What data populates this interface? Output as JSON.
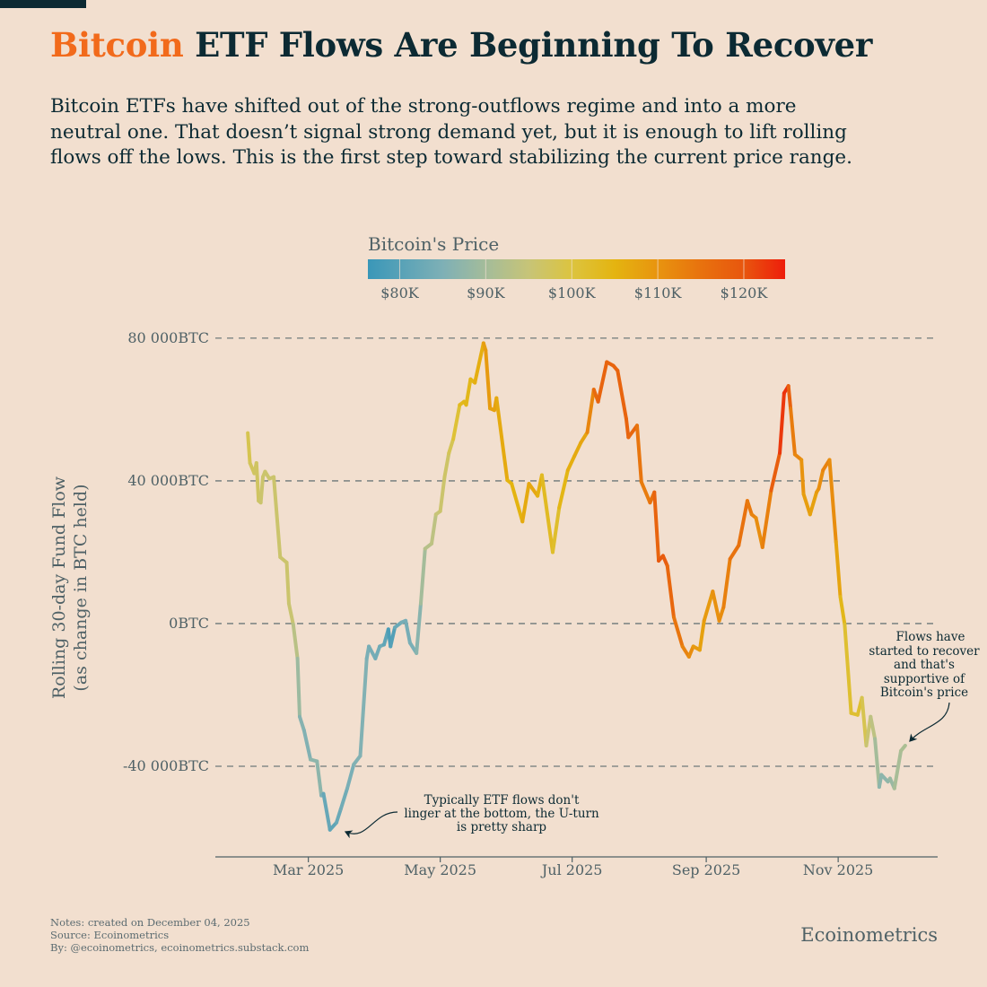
{
  "header": {
    "title_highlight": "Bitcoin",
    "title_rest": " ETF Flows Are Beginning To Recover",
    "subtitle": "Bitcoin ETFs have shifted out of the strong-outflows regime and into a more neutral one. That doesn’t signal strong demand yet, but it is enough to lift rolling flows off the lows. This is the first step toward stabilizing the current price range."
  },
  "colors": {
    "accent": "#f26a1b",
    "text": "#0c2a33",
    "background": "#f2dfcf",
    "muted": "#4f6166"
  },
  "footer": {
    "notes": "Notes: created on December 04, 2025",
    "source": "Source: Ecoinometrics",
    "by": "By: @ecoinometrics, ecoinometrics.substack.com",
    "brand": "Ecoinometrics"
  },
  "chart_data": {
    "type": "line",
    "title": "Bitcoin ETF Flows Are Beginning To Recover",
    "xlabel": "",
    "ylabel": "Rolling 30-day Fund Flow",
    "ylabel_sub": "(as change in BTC held)",
    "xlim": [
      "2025-01-17",
      "2025-12-17"
    ],
    "ylim": [
      -65400,
      85500
    ],
    "grid": "horizontal dashed",
    "yticks": [
      {
        "value": 80000,
        "label": "80 000BTC"
      },
      {
        "value": 40000,
        "label": "40 000BTC"
      },
      {
        "value": 0,
        "label": "0BTC"
      },
      {
        "value": -40000,
        "label": "-40 000BTC"
      }
    ],
    "xticks": [
      {
        "value": "2025-03-01",
        "label": "Mar 2025"
      },
      {
        "value": "2025-05-01",
        "label": "May 2025"
      },
      {
        "value": "2025-07-01",
        "label": "Jul 2025"
      },
      {
        "value": "2025-09-01",
        "label": "Sep 2025"
      },
      {
        "value": "2025-11-01",
        "label": "Nov 2025"
      }
    ],
    "colorbar": {
      "title": "Bitcoin's Price",
      "range": [
        76300,
        124800
      ],
      "ticks": [
        {
          "value": 80000,
          "label": "$80K"
        },
        {
          "value": 90000,
          "label": "$90K"
        },
        {
          "value": 100000,
          "label": "$100K"
        },
        {
          "value": 110000,
          "label": "$110K"
        },
        {
          "value": 120000,
          "label": "$120K"
        }
      ],
      "stops": [
        [
          76300,
          "#3a97b8"
        ],
        [
          85000,
          "#7eb0b6"
        ],
        [
          90000,
          "#a4bc9a"
        ],
        [
          95000,
          "#c7c477"
        ],
        [
          100000,
          "#dcc43f"
        ],
        [
          105000,
          "#e4b410"
        ],
        [
          110000,
          "#e8940f"
        ],
        [
          115000,
          "#e8720e"
        ],
        [
          120000,
          "#e8560e"
        ],
        [
          124800,
          "#ee1d0b"
        ]
      ]
    },
    "series_fields": [
      "date",
      "flow_btc",
      "price_usd"
    ],
    "series": [
      [
        "2025-02-01",
        53400,
        99000
      ],
      [
        "2025-02-02",
        45000,
        98000
      ],
      [
        "2025-02-04",
        42100,
        97000
      ],
      [
        "2025-02-05",
        45000,
        97000
      ],
      [
        "2025-02-06",
        34400,
        97000
      ],
      [
        "2025-02-07",
        33900,
        96000
      ],
      [
        "2025-02-08",
        41100,
        96000
      ],
      [
        "2025-02-09",
        42600,
        96000
      ],
      [
        "2025-02-11",
        40600,
        96000
      ],
      [
        "2025-02-13",
        41100,
        96000
      ],
      [
        "2025-02-16",
        18600,
        96000
      ],
      [
        "2025-02-19",
        17100,
        96000
      ],
      [
        "2025-02-20",
        5600,
        96000
      ],
      [
        "2025-02-22",
        -200,
        95000
      ],
      [
        "2025-02-24",
        -9800,
        91000
      ],
      [
        "2025-02-25",
        -26100,
        87000
      ],
      [
        "2025-02-27",
        -29900,
        85000
      ],
      [
        "2025-03-02",
        -38100,
        86000
      ],
      [
        "2025-03-05",
        -38600,
        88000
      ],
      [
        "2025-03-07",
        -48200,
        86000
      ],
      [
        "2025-03-08",
        -47700,
        84000
      ],
      [
        "2025-03-11",
        -57800,
        80000
      ],
      [
        "2025-03-14",
        -55800,
        82000
      ],
      [
        "2025-03-16",
        -52000,
        83000
      ],
      [
        "2025-03-19",
        -46200,
        84000
      ],
      [
        "2025-03-22",
        -39500,
        85000
      ],
      [
        "2025-03-25",
        -37100,
        86000
      ],
      [
        "2025-03-28",
        -9800,
        85000
      ],
      [
        "2025-03-29",
        -6400,
        84000
      ],
      [
        "2025-04-01",
        -9800,
        84000
      ],
      [
        "2025-04-03",
        -6400,
        83000
      ],
      [
        "2025-04-05",
        -5900,
        83000
      ],
      [
        "2025-04-07",
        -1600,
        79000
      ],
      [
        "2025-04-08",
        -6400,
        78000
      ],
      [
        "2025-04-10",
        -1100,
        81000
      ],
      [
        "2025-04-13",
        300,
        84000
      ],
      [
        "2025-04-15",
        800,
        84000
      ],
      [
        "2025-04-17",
        -5400,
        84000
      ],
      [
        "2025-04-20",
        -8300,
        85000
      ],
      [
        "2025-04-22",
        5600,
        88000
      ],
      [
        "2025-04-24",
        21000,
        92000
      ],
      [
        "2025-04-27",
        22400,
        93000
      ],
      [
        "2025-04-29",
        30600,
        94000
      ],
      [
        "2025-05-01",
        31500,
        96000
      ],
      [
        "2025-05-03",
        41100,
        96000
      ],
      [
        "2025-05-05",
        47800,
        97000
      ],
      [
        "2025-05-07",
        51700,
        99000
      ],
      [
        "2025-05-10",
        61300,
        103000
      ],
      [
        "2025-05-12",
        62200,
        104000
      ],
      [
        "2025-05-13",
        61300,
        104000
      ],
      [
        "2025-05-15",
        68500,
        104000
      ],
      [
        "2025-05-17",
        67500,
        105000
      ],
      [
        "2025-05-21",
        78600,
        107000
      ],
      [
        "2025-05-22",
        76600,
        110000
      ],
      [
        "2025-05-24",
        60300,
        108000
      ],
      [
        "2025-05-26",
        59800,
        108000
      ],
      [
        "2025-05-27",
        63200,
        108000
      ],
      [
        "2025-06-01",
        40200,
        105000
      ],
      [
        "2025-06-03",
        39200,
        105000
      ],
      [
        "2025-06-08",
        28600,
        105000
      ],
      [
        "2025-06-11",
        39200,
        108000
      ],
      [
        "2025-06-15",
        35800,
        106000
      ],
      [
        "2025-06-17",
        41600,
        105000
      ],
      [
        "2025-06-22",
        20000,
        101000
      ],
      [
        "2025-06-25",
        32500,
        103000
      ],
      [
        "2025-06-29",
        43000,
        106000
      ],
      [
        "2025-07-02",
        46900,
        106000
      ],
      [
        "2025-07-05",
        50700,
        107000
      ],
      [
        "2025-07-08",
        53600,
        108000
      ],
      [
        "2025-07-11",
        65600,
        116000
      ],
      [
        "2025-07-13",
        62200,
        117000
      ],
      [
        "2025-07-17",
        73300,
        118000
      ],
      [
        "2025-07-20",
        72300,
        117000
      ],
      [
        "2025-07-22",
        70900,
        118000
      ],
      [
        "2025-07-26",
        57400,
        117000
      ],
      [
        "2025-07-27",
        52200,
        118000
      ],
      [
        "2025-07-31",
        55500,
        116000
      ],
      [
        "2025-08-02",
        39700,
        113000
      ],
      [
        "2025-08-06",
        33900,
        114000
      ],
      [
        "2025-08-08",
        36800,
        116000
      ],
      [
        "2025-08-10",
        17600,
        119000
      ],
      [
        "2025-08-12",
        19000,
        120000
      ],
      [
        "2025-08-14",
        16200,
        118000
      ],
      [
        "2025-08-17",
        1800,
        116000
      ],
      [
        "2025-08-21",
        -6400,
        113000
      ],
      [
        "2025-08-24",
        -9300,
        112000
      ],
      [
        "2025-08-26",
        -6400,
        110000
      ],
      [
        "2025-08-29",
        -7400,
        108000
      ],
      [
        "2025-08-31",
        800,
        108000
      ],
      [
        "2025-09-04",
        9000,
        110000
      ],
      [
        "2025-09-07",
        800,
        111000
      ],
      [
        "2025-09-09",
        4600,
        111000
      ],
      [
        "2025-09-12",
        18100,
        115000
      ],
      [
        "2025-09-16",
        21900,
        115000
      ],
      [
        "2025-09-20",
        34400,
        115000
      ],
      [
        "2025-09-22",
        30600,
        113000
      ],
      [
        "2025-09-24",
        29600,
        112000
      ],
      [
        "2025-09-27",
        21400,
        110000
      ],
      [
        "2025-10-01",
        37300,
        116000
      ],
      [
        "2025-10-05",
        47800,
        121000
      ],
      [
        "2025-10-07",
        64600,
        124000
      ],
      [
        "2025-10-09",
        66600,
        122000
      ],
      [
        "2025-10-10",
        60300,
        114000
      ],
      [
        "2025-10-12",
        47400,
        113000
      ],
      [
        "2025-10-15",
        45900,
        111000
      ],
      [
        "2025-10-16",
        36300,
        109000
      ],
      [
        "2025-10-19",
        30600,
        108000
      ],
      [
        "2025-10-22",
        36800,
        108000
      ],
      [
        "2025-10-23",
        37800,
        110000
      ],
      [
        "2025-10-25",
        43000,
        112000
      ],
      [
        "2025-10-28",
        45900,
        113000
      ],
      [
        "2025-10-31",
        22900,
        109000
      ],
      [
        "2025-11-02",
        7500,
        106000
      ],
      [
        "2025-11-04",
        -200,
        102000
      ],
      [
        "2025-11-07",
        -25100,
        101000
      ],
      [
        "2025-11-10",
        -25600,
        102000
      ],
      [
        "2025-11-12",
        -20800,
        101000
      ],
      [
        "2025-11-14",
        -34200,
        96000
      ],
      [
        "2025-11-16",
        -26100,
        95000
      ],
      [
        "2025-11-18",
        -32300,
        92000
      ],
      [
        "2025-11-20",
        -45800,
        88000
      ],
      [
        "2025-11-21",
        -42400,
        86000
      ],
      [
        "2025-11-24",
        -44300,
        88000
      ],
      [
        "2025-11-25",
        -43400,
        87000
      ],
      [
        "2025-11-27",
        -46200,
        90000
      ],
      [
        "2025-11-30",
        -35700,
        91000
      ],
      [
        "2025-12-02",
        -34200,
        91000
      ]
    ],
    "annotations": [
      {
        "text": [
          "Typically ETF flows don't",
          "linger at the bottom, the U-turn",
          "is pretty sharp"
        ],
        "target_date": "2025-03-12",
        "target_flow": -57000
      },
      {
        "text": [
          "Flows have",
          "started to recover",
          "and that's",
          "supportive of",
          "Bitcoin's price"
        ],
        "target_date": "2025-12-01",
        "target_flow": -33500
      }
    ]
  }
}
